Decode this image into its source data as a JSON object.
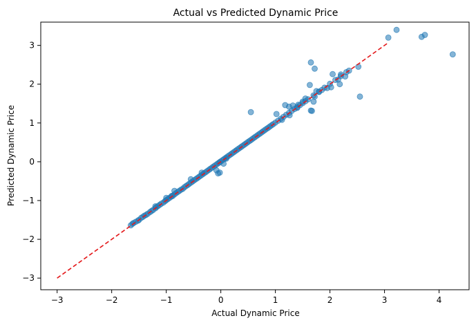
{
  "chart_data": {
    "type": "scatter",
    "title": "Actual vs Predicted Dynamic Price",
    "xlabel": "Actual Dynamic Price",
    "ylabel": "Predicted Dynamic Price",
    "xlim": [
      -3.3,
      4.55
    ],
    "ylim": [
      -3.3,
      3.6
    ],
    "xticks": [
      -3,
      -2,
      -1,
      0,
      1,
      2,
      3,
      4
    ],
    "yticks": [
      -3,
      -2,
      -1,
      0,
      1,
      2,
      3
    ],
    "grid": false,
    "point_color": "#1f77b4",
    "point_alpha": 0.55,
    "line_color": "#e41a1c",
    "reference_line": {
      "x": [
        -3,
        3.05
      ],
      "y": [
        -3,
        3.05
      ],
      "style": "dashed"
    },
    "points": [
      [
        -1.65,
        -1.64
      ],
      [
        -1.62,
        -1.6
      ],
      [
        -1.6,
        -1.58
      ],
      [
        -1.56,
        -1.55
      ],
      [
        -1.52,
        -1.52
      ],
      [
        -1.5,
        -1.5
      ],
      [
        -1.46,
        -1.45
      ],
      [
        -1.43,
        -1.42
      ],
      [
        -1.4,
        -1.39
      ],
      [
        -1.37,
        -1.37
      ],
      [
        -1.34,
        -1.34
      ],
      [
        -1.3,
        -1.3
      ],
      [
        -1.27,
        -1.27
      ],
      [
        -1.24,
        -1.24
      ],
      [
        -1.2,
        -1.2
      ],
      [
        -1.18,
        -1.17
      ],
      [
        -1.15,
        -1.14
      ],
      [
        -1.12,
        -1.11
      ],
      [
        -1.09,
        -1.08
      ],
      [
        -1.05,
        -1.05
      ],
      [
        -1.02,
        -1.01
      ],
      [
        -1.0,
        -0.99
      ],
      [
        -0.97,
        -0.96
      ],
      [
        -0.94,
        -0.93
      ],
      [
        -0.91,
        -0.9
      ],
      [
        -0.88,
        -0.88
      ],
      [
        -0.85,
        -0.84
      ],
      [
        -0.82,
        -0.81
      ],
      [
        -0.79,
        -0.78
      ],
      [
        -0.76,
        -0.75
      ],
      [
        -0.73,
        -0.72
      ],
      [
        -0.7,
        -0.7
      ],
      [
        -0.67,
        -0.66
      ],
      [
        -0.64,
        -0.63
      ],
      [
        -0.61,
        -0.6
      ],
      [
        -0.58,
        -0.57
      ],
      [
        -0.55,
        -0.54
      ],
      [
        -0.52,
        -0.51
      ],
      [
        -0.49,
        -0.48
      ],
      [
        -0.46,
        -0.45
      ],
      [
        -0.43,
        -0.42
      ],
      [
        -0.4,
        -0.39
      ],
      [
        -0.37,
        -0.36
      ],
      [
        -0.34,
        -0.33
      ],
      [
        -0.31,
        -0.3
      ],
      [
        -0.28,
        -0.27
      ],
      [
        -0.25,
        -0.24
      ],
      [
        -0.22,
        -0.21
      ],
      [
        -0.19,
        -0.18
      ],
      [
        -0.16,
        -0.15
      ],
      [
        -0.13,
        -0.12
      ],
      [
        -0.1,
        -0.09
      ],
      [
        -0.07,
        -0.06
      ],
      [
        -0.04,
        -0.03
      ],
      [
        -0.02,
        -0.01
      ],
      [
        0.0,
        0.01
      ],
      [
        0.03,
        0.04
      ],
      [
        0.06,
        0.07
      ],
      [
        0.09,
        0.1
      ],
      [
        0.12,
        0.13
      ],
      [
        0.15,
        0.16
      ],
      [
        0.18,
        0.19
      ],
      [
        0.21,
        0.22
      ],
      [
        0.24,
        0.25
      ],
      [
        0.27,
        0.28
      ],
      [
        0.3,
        0.31
      ],
      [
        0.33,
        0.34
      ],
      [
        0.36,
        0.37
      ],
      [
        0.39,
        0.4
      ],
      [
        0.42,
        0.43
      ],
      [
        0.45,
        0.46
      ],
      [
        0.48,
        0.49
      ],
      [
        0.51,
        0.52
      ],
      [
        0.54,
        0.55
      ],
      [
        0.57,
        0.58
      ],
      [
        0.6,
        0.61
      ],
      [
        0.63,
        0.64
      ],
      [
        0.66,
        0.67
      ],
      [
        0.69,
        0.7
      ],
      [
        0.72,
        0.73
      ],
      [
        0.75,
        0.76
      ],
      [
        0.78,
        0.79
      ],
      [
        0.81,
        0.82
      ],
      [
        0.84,
        0.85
      ],
      [
        0.87,
        0.88
      ],
      [
        0.9,
        0.91
      ],
      [
        0.93,
        0.94
      ],
      [
        0.96,
        0.97
      ],
      [
        1.0,
        1.01
      ],
      [
        1.05,
        1.06
      ],
      [
        1.1,
        1.11
      ],
      [
        1.15,
        1.16
      ],
      [
        1.2,
        1.21
      ],
      [
        1.25,
        1.26
      ],
      [
        1.3,
        1.31
      ],
      [
        1.35,
        1.36
      ],
      [
        1.4,
        1.41
      ],
      [
        1.45,
        1.46
      ],
      [
        1.5,
        1.51
      ],
      [
        1.55,
        1.56
      ],
      [
        1.6,
        1.61
      ],
      [
        1.7,
        1.71
      ],
      [
        1.8,
        1.81
      ],
      [
        1.9,
        1.91
      ],
      [
        2.0,
        2.01
      ],
      [
        2.1,
        2.11
      ],
      [
        2.2,
        2.21
      ],
      [
        2.3,
        2.31
      ],
      [
        -1.2,
        -1.15
      ],
      [
        -1.0,
        -0.93
      ],
      [
        -0.85,
        -0.75
      ],
      [
        -0.9,
        -0.88
      ],
      [
        -0.55,
        -0.45
      ],
      [
        -0.35,
        -0.28
      ],
      [
        -0.05,
        -0.3
      ],
      [
        -0.08,
        -0.22
      ],
      [
        -0.02,
        -0.28
      ],
      [
        0.05,
        -0.05
      ],
      [
        0.1,
        0.08
      ],
      [
        0.55,
        1.28
      ],
      [
        1.02,
        1.23
      ],
      [
        1.12,
        1.08
      ],
      [
        1.18,
        1.46
      ],
      [
        1.25,
        1.42
      ],
      [
        1.32,
        1.45
      ],
      [
        1.26,
        1.2
      ],
      [
        1.4,
        1.39
      ],
      [
        1.42,
        1.47
      ],
      [
        1.5,
        1.55
      ],
      [
        1.55,
        1.63
      ],
      [
        1.65,
        1.32
      ],
      [
        1.67,
        1.31
      ],
      [
        1.63,
        1.98
      ],
      [
        1.7,
        1.55
      ],
      [
        1.72,
        1.68
      ],
      [
        1.75,
        1.82
      ],
      [
        1.8,
        1.8
      ],
      [
        1.85,
        1.85
      ],
      [
        1.95,
        1.9
      ],
      [
        2.02,
        1.92
      ],
      [
        2.05,
        2.26
      ],
      [
        2.15,
        2.12
      ],
      [
        2.2,
        2.25
      ],
      [
        2.18,
        2.0
      ],
      [
        2.28,
        2.2
      ],
      [
        2.35,
        2.35
      ],
      [
        2.52,
        2.45
      ],
      [
        2.55,
        1.68
      ],
      [
        1.65,
        2.56
      ],
      [
        1.72,
        2.4
      ],
      [
        3.07,
        3.2
      ],
      [
        3.22,
        3.4
      ],
      [
        3.68,
        3.22
      ],
      [
        3.74,
        3.27
      ],
      [
        4.25,
        2.77
      ]
    ]
  }
}
